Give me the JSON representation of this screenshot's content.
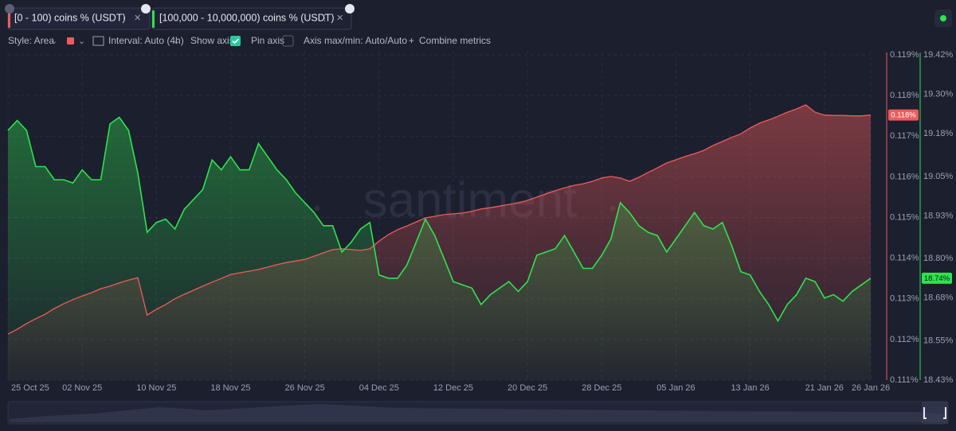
{
  "ui": {
    "style": "Style: Area",
    "interval": "Interval: Auto (4h)",
    "show_axis": "Show axis",
    "pin_axis": "Pin axis",
    "axis_maxmin": "Axis max/min: Auto/Auto",
    "combine": "Combine metrics",
    "watermark": "santiment"
  },
  "chart_data": {
    "type": "area",
    "x": [
      "2025-10-25",
      "2025-10-26",
      "2025-10-27",
      "2025-10-28",
      "2025-10-29",
      "2025-10-30",
      "2025-10-31",
      "2025-11-01",
      "2025-11-02",
      "2025-11-03",
      "2025-11-04",
      "2025-11-05",
      "2025-11-06",
      "2025-11-07",
      "2025-11-08",
      "2025-11-09",
      "2025-11-10",
      "2025-11-11",
      "2025-11-12",
      "2025-11-13",
      "2025-11-14",
      "2025-11-15",
      "2025-11-16",
      "2025-11-17",
      "2025-11-18",
      "2025-11-19",
      "2025-11-20",
      "2025-11-21",
      "2025-11-22",
      "2025-11-23",
      "2025-11-24",
      "2025-11-25",
      "2025-11-26",
      "2025-11-27",
      "2025-11-28",
      "2025-11-29",
      "2025-11-30",
      "2025-12-01",
      "2025-12-02",
      "2025-12-03",
      "2025-12-04",
      "2025-12-05",
      "2025-12-06",
      "2025-12-07",
      "2025-12-08",
      "2025-12-09",
      "2025-12-10",
      "2025-12-11",
      "2025-12-12",
      "2025-12-13",
      "2025-12-14",
      "2025-12-15",
      "2025-12-16",
      "2025-12-17",
      "2025-12-18",
      "2025-12-19",
      "2025-12-20",
      "2025-12-21",
      "2025-12-22",
      "2025-12-23",
      "2025-12-24",
      "2025-12-25",
      "2025-12-26",
      "2025-12-27",
      "2025-12-28",
      "2025-12-29",
      "2025-12-30",
      "2025-12-31",
      "2026-01-01",
      "2026-01-02",
      "2026-01-03",
      "2026-01-04",
      "2026-01-05",
      "2026-01-06",
      "2026-01-07",
      "2026-01-08",
      "2026-01-09",
      "2026-01-10",
      "2026-01-11",
      "2026-01-12",
      "2026-01-13",
      "2026-01-14",
      "2026-01-15",
      "2026-01-16",
      "2026-01-17",
      "2026-01-18",
      "2026-01-19",
      "2026-01-20",
      "2026-01-21",
      "2026-01-22",
      "2026-01-23",
      "2026-01-24",
      "2026-01-25",
      "2026-01-26"
    ],
    "xlim": [
      "2025-10-25",
      "2026-01-26"
    ],
    "xticks": [
      {
        "value": "2025-10-25",
        "label": "25 Oct 25"
      },
      {
        "value": "2025-11-02",
        "label": "02 Nov 25"
      },
      {
        "value": "2025-11-10",
        "label": "10 Nov 25"
      },
      {
        "value": "2025-11-18",
        "label": "18 Nov 25"
      },
      {
        "value": "2025-11-26",
        "label": "26 Nov 25"
      },
      {
        "value": "2025-12-04",
        "label": "04 Dec 25"
      },
      {
        "value": "2025-12-12",
        "label": "12 Dec 25"
      },
      {
        "value": "2025-12-20",
        "label": "20 Dec 25"
      },
      {
        "value": "2025-12-28",
        "label": "28 Dec 25"
      },
      {
        "value": "2026-01-05",
        "label": "05 Jan 26"
      },
      {
        "value": "2026-01-13",
        "label": "13 Jan 26"
      },
      {
        "value": "2026-01-21",
        "label": "21 Jan 26"
      },
      {
        "value": "2026-01-26",
        "label": "26 Jan 26"
      }
    ],
    "ylim": [
      0.111,
      0.119
    ],
    "yticks": [
      {
        "value": 0.111,
        "label": "0.111%"
      },
      {
        "value": 0.112,
        "label": "0.112%"
      },
      {
        "value": 0.113,
        "label": "0.113%"
      },
      {
        "value": 0.114,
        "label": "0.114%"
      },
      {
        "value": 0.115,
        "label": "0.115%"
      },
      {
        "value": 0.116,
        "label": "0.116%"
      },
      {
        "value": 0.117,
        "label": "0.117%"
      },
      {
        "value": 0.118,
        "label": "0.118%"
      },
      {
        "value": 0.119,
        "label": "0.119%"
      }
    ],
    "y2lim": [
      18.43,
      19.42
    ],
    "y2ticks": [
      {
        "value": 18.43,
        "label": "18.43%"
      },
      {
        "value": 18.55,
        "label": "18.55%"
      },
      {
        "value": 18.68,
        "label": "18.68%"
      },
      {
        "value": 18.8,
        "label": "18.80%"
      },
      {
        "value": 18.93,
        "label": "18.93%"
      },
      {
        "value": 19.05,
        "label": "19.05%"
      },
      {
        "value": 19.18,
        "label": "19.18%"
      },
      {
        "value": 19.3,
        "label": "19.30%"
      },
      {
        "value": 19.42,
        "label": "19.42%"
      }
    ],
    "grid": true,
    "series": [
      {
        "name": "[0 - 100) coins % (USDT)",
        "color": "#ef5b5b",
        "axis": "y",
        "last_label": "0.118%",
        "values": [
          0.11213,
          0.11225,
          0.11239,
          0.11251,
          0.11262,
          0.11276,
          0.11288,
          0.11298,
          0.11307,
          0.11315,
          0.11325,
          0.11331,
          0.11339,
          0.11346,
          0.11352,
          0.1126,
          0.11274,
          0.11286,
          0.113,
          0.11311,
          0.11321,
          0.11331,
          0.11341,
          0.1135,
          0.1136,
          0.11364,
          0.11368,
          0.11372,
          0.11378,
          0.11384,
          0.11389,
          0.11393,
          0.11397,
          0.11405,
          0.11413,
          0.11421,
          0.11423,
          0.11421,
          0.11419,
          0.11423,
          0.11442,
          0.11458,
          0.1147,
          0.11479,
          0.11489,
          0.11499,
          0.11503,
          0.11507,
          0.11509,
          0.11511,
          0.11515,
          0.11521,
          0.11524,
          0.11528,
          0.11532,
          0.11536,
          0.11542,
          0.1155,
          0.11558,
          0.11566,
          0.11573,
          0.11579,
          0.11583,
          0.11589,
          0.11597,
          0.11601,
          0.11597,
          0.11589,
          0.11599,
          0.11611,
          0.11622,
          0.11634,
          0.11642,
          0.1165,
          0.11657,
          0.11665,
          0.11677,
          0.11687,
          0.11697,
          0.11706,
          0.1172,
          0.11732,
          0.1174,
          0.11749,
          0.11759,
          0.11767,
          0.11777,
          0.11759,
          0.11752,
          0.11751,
          0.11751,
          0.1175,
          0.1175,
          0.11752
        ]
      },
      {
        "name": "[100,000 - 10,000,000) coins % (USDT)",
        "color": "#2ee34f",
        "axis": "y2",
        "last_label": "18.74%",
        "values": [
          19.19,
          19.22,
          19.19,
          19.08,
          19.08,
          19.04,
          19.04,
          19.03,
          19.07,
          19.04,
          19.04,
          19.21,
          19.23,
          19.19,
          19.06,
          18.88,
          18.91,
          18.92,
          18.89,
          18.95,
          18.98,
          19.01,
          19.1,
          19.07,
          19.11,
          19.07,
          19.07,
          19.15,
          19.11,
          19.07,
          19.04,
          19.0,
          18.97,
          18.94,
          18.9,
          18.9,
          18.82,
          18.85,
          18.89,
          18.91,
          18.75,
          18.74,
          18.74,
          18.78,
          18.85,
          18.92,
          18.87,
          18.8,
          18.73,
          18.72,
          18.71,
          18.66,
          18.69,
          18.71,
          18.73,
          18.7,
          18.73,
          18.81,
          18.82,
          18.83,
          18.87,
          18.82,
          18.77,
          18.77,
          18.81,
          18.86,
          18.97,
          18.94,
          18.9,
          18.88,
          18.87,
          18.82,
          18.86,
          18.9,
          18.94,
          18.9,
          18.89,
          18.91,
          18.84,
          18.76,
          18.75,
          18.7,
          18.66,
          18.61,
          18.66,
          18.69,
          18.74,
          18.73,
          18.68,
          18.69,
          18.67,
          18.7,
          18.72,
          18.74
        ]
      }
    ]
  }
}
